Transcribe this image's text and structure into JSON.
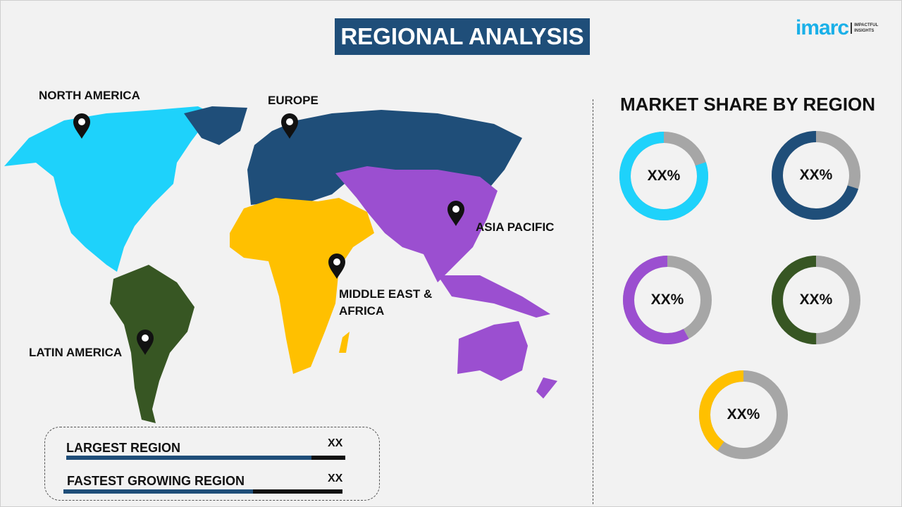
{
  "header": {
    "title": "REGIONAL ANALYSIS",
    "logo_text": "imarc",
    "logo_tagline_1": "IMPACTFUL",
    "logo_tagline_2": "INSIGHTS"
  },
  "map": {
    "labels": {
      "north_america": "NORTH AMERICA",
      "europe": "EUROPE",
      "asia_pacific": "ASIA PACIFIC",
      "mea_line1": "MIDDLE EAST &",
      "mea_line2": "AFRICA",
      "latin_america": "LATIN AMERICA"
    },
    "colors": {
      "north_america": "#1ed2fb",
      "europe": "#1f4e79",
      "asia_pacific": "#9b4fd0",
      "mea": "#ffc000",
      "latin_america": "#375623"
    }
  },
  "summary": {
    "rows": [
      {
        "label": "LARGEST REGION",
        "value": "XX",
        "bar_fill_percent": 88
      },
      {
        "label": "FASTEST GROWING REGION",
        "value": "XX",
        "bar_fill_percent": 68
      }
    ]
  },
  "market_share": {
    "title": "MARKET SHARE BY REGION",
    "donuts": [
      {
        "region": "North America",
        "label": "XX%",
        "fill_percent": 80,
        "color": "#1ed2fb"
      },
      {
        "region": "Europe",
        "label": "XX%",
        "fill_percent": 70,
        "color": "#1f4e79"
      },
      {
        "region": "Asia Pacific",
        "label": "XX%",
        "fill_percent": 58,
        "color": "#9b4fd0"
      },
      {
        "region": "Latin America",
        "label": "XX%",
        "fill_percent": 50,
        "color": "#375623"
      },
      {
        "region": "Middle East & Africa",
        "label": "XX%",
        "fill_percent": 40,
        "color": "#ffc000"
      }
    ],
    "remainder_color": "#a6a6a6"
  }
}
